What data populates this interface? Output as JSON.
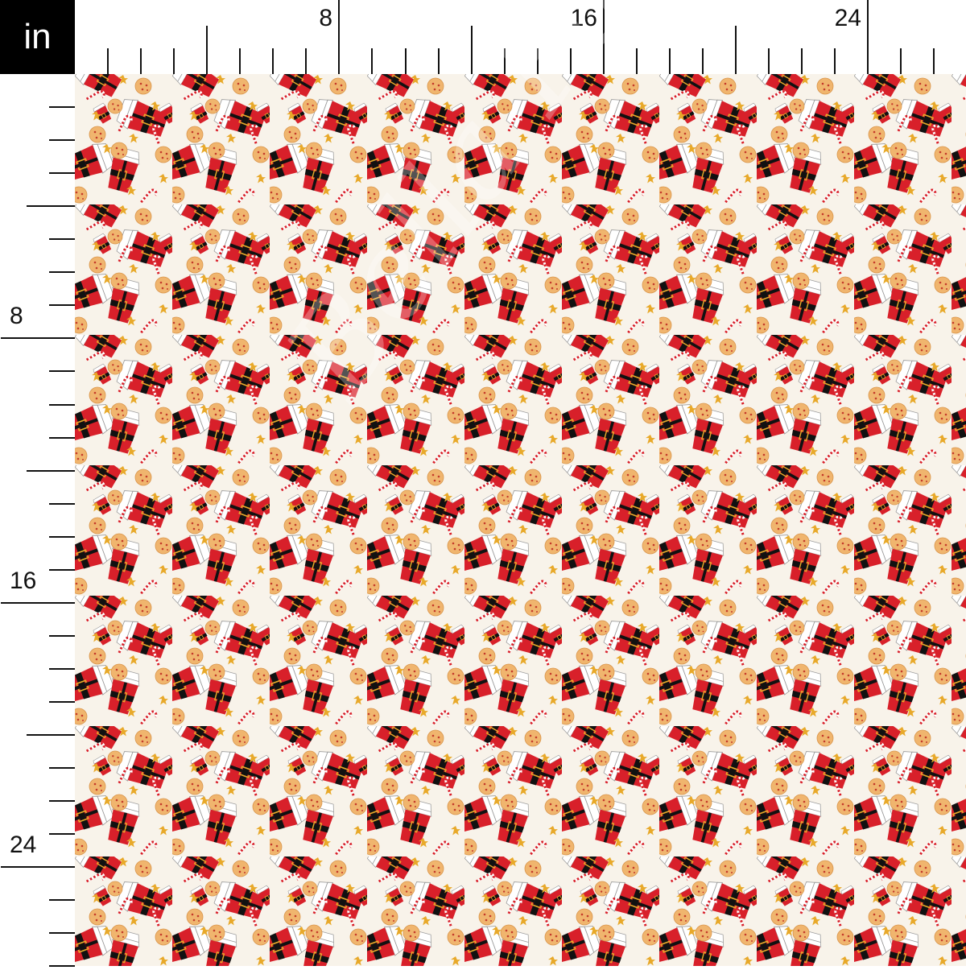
{
  "ruler": {
    "unit": "in",
    "top_labels": [
      "8",
      "16",
      "24"
    ],
    "left_labels": [
      "8",
      "16",
      "24"
    ],
    "labeled_every_inches": 8,
    "mid_tick_every_inches": 4
  },
  "fabric": {
    "motifs": [
      "santa-coffee-cup",
      "cookie",
      "candy-cane",
      "star"
    ],
    "colors": {
      "background": "#f8f3ea",
      "red": "#d8202a",
      "black": "#111111",
      "gold": "#e8a92a",
      "cookie": "#f0b56e",
      "white": "#ffffff"
    }
  }
}
